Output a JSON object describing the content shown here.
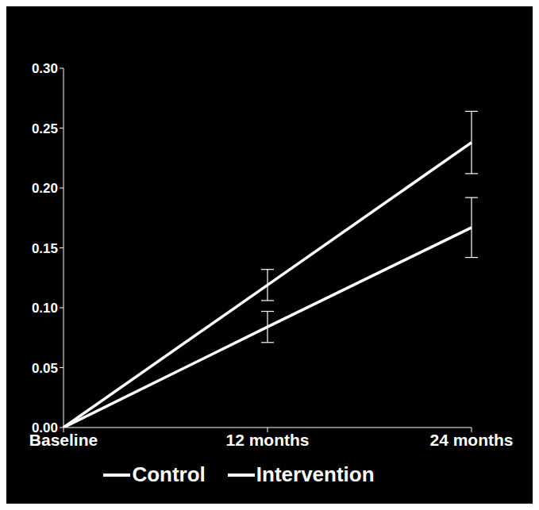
{
  "chart_data": {
    "type": "line",
    "categories": [
      "Baseline",
      "12 months",
      "24 months"
    ],
    "series": [
      {
        "name": "Control",
        "color": "#ffffff",
        "values": [
          0,
          0.119,
          0.238
        ],
        "errors": [
          null,
          0.013,
          0.026
        ]
      },
      {
        "name": "Intervention",
        "color": "#ffffff",
        "values": [
          0,
          0.084,
          0.167
        ],
        "errors": [
          null,
          0.013,
          0.025
        ]
      }
    ],
    "ylim": [
      0,
      0.3
    ],
    "yticks": [
      {
        "value": 0,
        "label": "0.00"
      },
      {
        "value": 0.05,
        "label": "0.05"
      },
      {
        "value": 0.1,
        "label": "0.10"
      },
      {
        "value": 0.15,
        "label": "0.15"
      },
      {
        "value": 0.2,
        "label": "0.20"
      },
      {
        "value": 0.25,
        "label": "0.25"
      },
      {
        "value": 0.3,
        "label": "0.30"
      }
    ],
    "grid": false,
    "legend": "bottom"
  }
}
